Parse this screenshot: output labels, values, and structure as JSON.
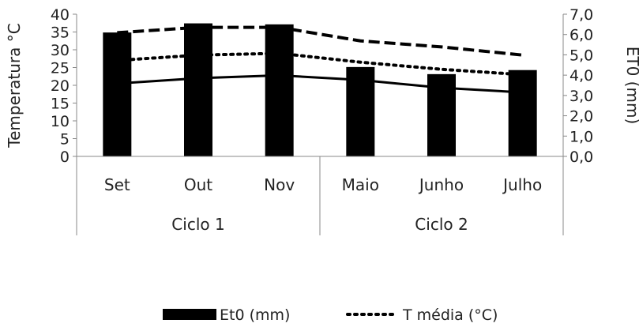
{
  "chart_data": {
    "type": "bar+line",
    "categories": [
      "Set",
      "Out",
      "Nov",
      "Maio",
      "Junho",
      "Julho"
    ],
    "groups": [
      {
        "label": "Ciclo 1",
        "categories": [
          "Set",
          "Out",
          "Nov"
        ]
      },
      {
        "label": "Ciclo 2",
        "categories": [
          "Maio",
          "Junho",
          "Julho"
        ]
      }
    ],
    "y_left": {
      "label": "Temperatura °C",
      "lim": [
        0,
        40
      ],
      "ticks": [
        "0",
        "5",
        "10",
        "15",
        "20",
        "25",
        "30",
        "35",
        "40"
      ]
    },
    "y_right": {
      "label": "ET0 (mm)",
      "lim": [
        0,
        7
      ],
      "ticks": [
        "0,0",
        "1,0",
        "2,0",
        "3,0",
        "4,0",
        "5,0",
        "6,0",
        "7,0"
      ]
    },
    "bars": {
      "name": "Et0 (mm)",
      "axis": "right",
      "color": "#000000",
      "values": [
        6.1,
        6.55,
        6.5,
        4.4,
        4.05,
        4.25
      ]
    },
    "lines": [
      {
        "axis": "left",
        "style": "dashed",
        "color": "#000000",
        "values": [
          34.8,
          36.3,
          36.3,
          32.5,
          30.8,
          28.5
        ]
      },
      {
        "name": "T média (°C)",
        "axis": "left",
        "style": "dotted",
        "color": "#000000",
        "values": [
          27.0,
          28.5,
          29.0,
          26.5,
          24.5,
          23.0
        ]
      },
      {
        "axis": "left",
        "style": "solid",
        "color": "#000000",
        "values": [
          20.5,
          22.0,
          22.8,
          21.5,
          19.3,
          18.0
        ]
      }
    ],
    "grid": false,
    "legend_position": "bottom-center",
    "legend": [
      {
        "label": "Et0 (mm)",
        "style": "bar"
      },
      {
        "label": "T média (°C)",
        "style": "dotted"
      }
    ]
  }
}
